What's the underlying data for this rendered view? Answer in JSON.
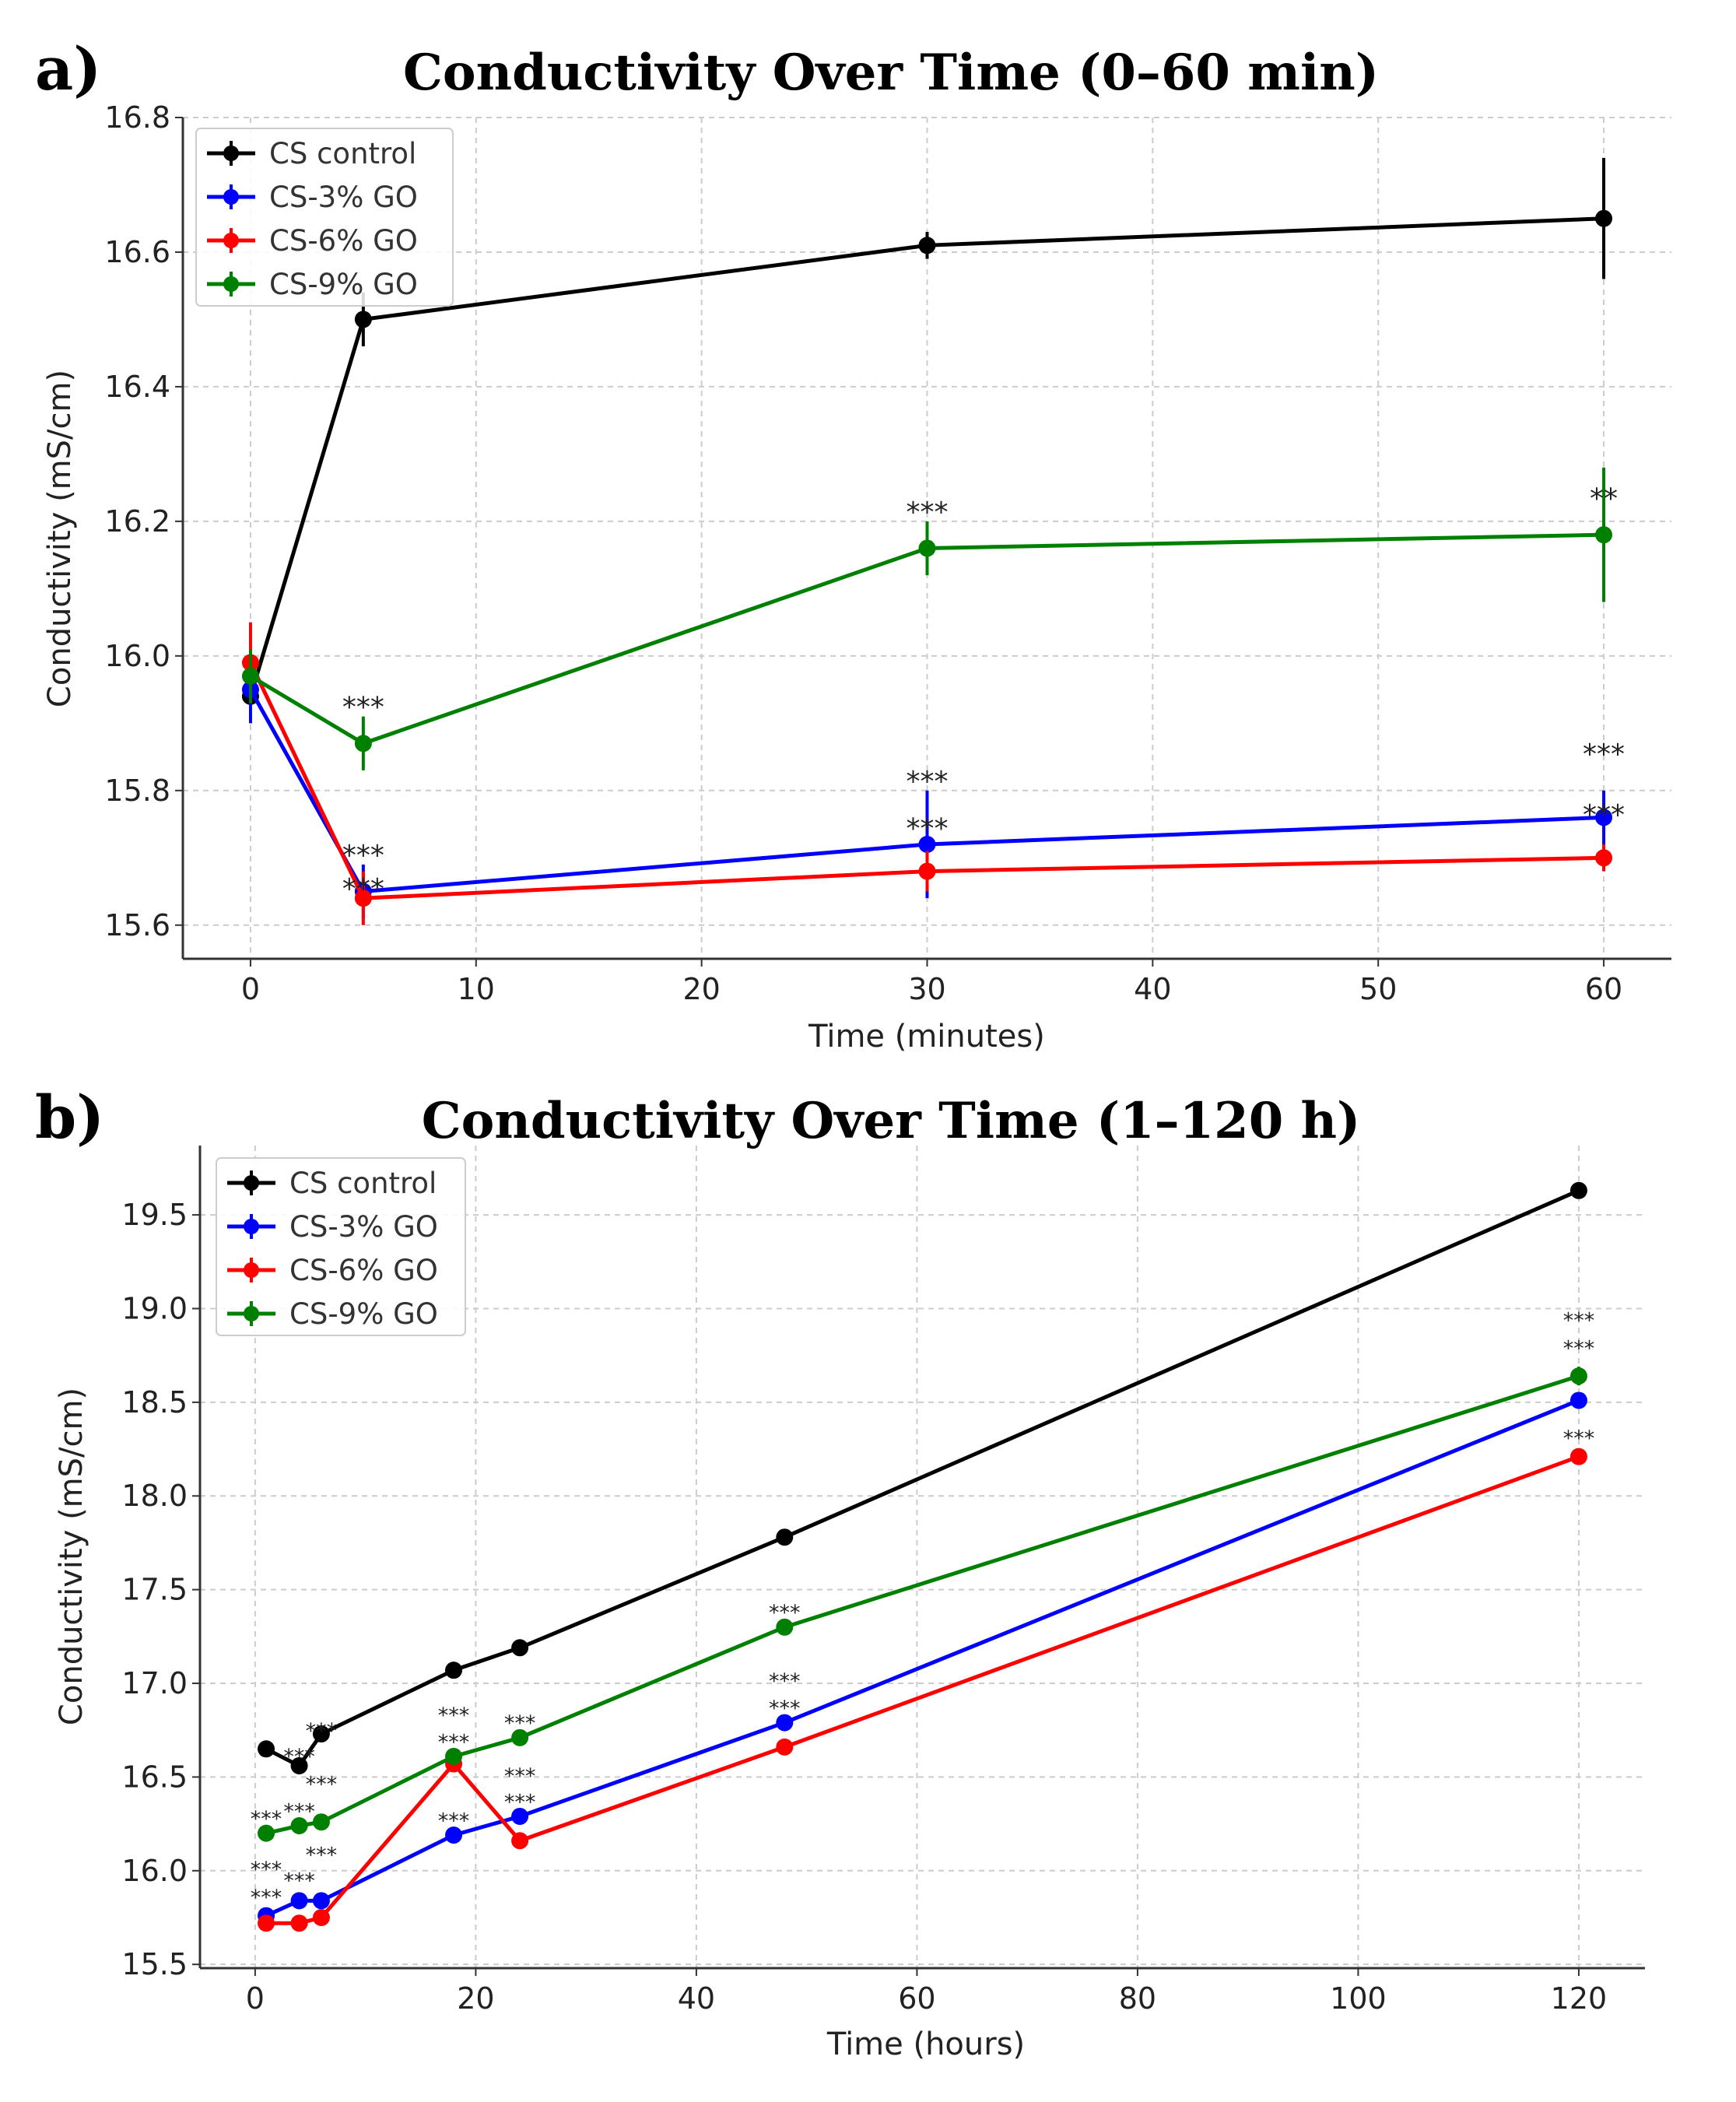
{
  "chart_data": [
    {
      "type": "line",
      "panel_label": "a)",
      "title": "Conductivity Over Time (0–60 min)",
      "xlabel": "Time (minutes)",
      "ylabel": "Conductivity (mS/cm)",
      "xlim": [
        -3,
        63
      ],
      "ylim": [
        15.55,
        16.8
      ],
      "xticks": [
        0,
        10,
        20,
        30,
        40,
        50,
        60
      ],
      "xtick_labels": [
        "0",
        "10",
        "20",
        "30",
        "40",
        "50",
        "60"
      ],
      "yticks": [
        15.6,
        15.8,
        16.0,
        16.2,
        16.4,
        16.6,
        16.8
      ],
      "ytick_labels": [
        "15.6",
        "15.8",
        "16.0",
        "16.2",
        "16.4",
        "16.6",
        "16.8"
      ],
      "grid": true,
      "legend_position": "top-left",
      "x": [
        0,
        5,
        30,
        60
      ],
      "series": [
        {
          "name": "CS control",
          "color": "#000000",
          "values": [
            15.94,
            16.5,
            16.61,
            16.65
          ],
          "errors": [
            0.01,
            0.04,
            0.02,
            0.09
          ]
        },
        {
          "name": "CS-3% GO",
          "color": "#0000ff",
          "values": [
            15.95,
            15.65,
            15.72,
            15.76
          ],
          "errors": [
            0.05,
            0.04,
            0.08,
            0.04
          ]
        },
        {
          "name": "CS-6% GO",
          "color": "#ff0000",
          "values": [
            15.99,
            15.64,
            15.68,
            15.7
          ],
          "errors": [
            0.06,
            0.04,
            0.03,
            0.02
          ]
        },
        {
          "name": "CS-9% GO",
          "color": "#008000",
          "values": [
            15.97,
            15.87,
            16.16,
            16.18
          ],
          "errors": [
            0.04,
            0.04,
            0.04,
            0.1
          ]
        }
      ],
      "annotations": [
        {
          "x": 5,
          "y": 15.91,
          "text": "***"
        },
        {
          "x": 30,
          "y": 16.2,
          "text": "***"
        },
        {
          "x": 60,
          "y": 16.22,
          "text": "**"
        },
        {
          "x": 5,
          "y": 15.69,
          "text": "***"
        },
        {
          "x": 5,
          "y": 15.64,
          "text": "***"
        },
        {
          "x": 30,
          "y": 15.8,
          "text": "***"
        },
        {
          "x": 30,
          "y": 15.73,
          "text": "***"
        },
        {
          "x": 60,
          "y": 15.84,
          "text": "***"
        },
        {
          "x": 60,
          "y": 15.75,
          "text": "***"
        }
      ]
    },
    {
      "type": "line",
      "panel_label": "b)",
      "title": "Conductivity Over Time (1–120 h)",
      "xlabel": "Time (hours)",
      "ylabel": "Conductivity (mS/cm)",
      "xlim": [
        -5,
        126
      ],
      "ylim": [
        15.48,
        19.87
      ],
      "xticks": [
        0,
        20,
        40,
        60,
        80,
        100,
        120
      ],
      "xtick_labels": [
        "0",
        "20",
        "40",
        "60",
        "80",
        "100",
        "120"
      ],
      "yticks": [
        15.5,
        16.0,
        16.5,
        17.0,
        17.5,
        18.0,
        18.5,
        19.0,
        19.5
      ],
      "ytick_labels": [
        "15.5",
        "16.0",
        "16.5",
        "17.0",
        "17.5",
        "18.0",
        "18.5",
        "19.0",
        "19.5"
      ],
      "grid": true,
      "legend_position": "top-left",
      "x": [
        1,
        4,
        6,
        18,
        24,
        48,
        120
      ],
      "series": [
        {
          "name": "CS control",
          "color": "#000000",
          "values": [
            16.65,
            16.56,
            16.73,
            17.07,
            17.19,
            17.78,
            19.63
          ],
          "errors": [
            0.02,
            0.02,
            0.02,
            0.02,
            0.02,
            0.04,
            0.02
          ]
        },
        {
          "name": "CS-3% GO",
          "color": "#0000ff",
          "values": [
            15.76,
            15.84,
            15.84,
            16.19,
            16.29,
            16.79,
            18.51
          ],
          "errors": [
            0.02,
            0.02,
            0.02,
            0.04,
            0.02,
            0.03,
            0.02
          ]
        },
        {
          "name": "CS-6% GO",
          "color": "#ff0000",
          "values": [
            15.72,
            15.72,
            15.75,
            16.57,
            16.16,
            16.66,
            18.21
          ],
          "errors": [
            0.02,
            0.02,
            0.02,
            0.02,
            0.02,
            0.02,
            0.02
          ]
        },
        {
          "name": "CS-9% GO",
          "color": "#008000",
          "values": [
            16.2,
            16.24,
            16.26,
            16.61,
            16.71,
            17.3,
            18.64
          ],
          "errors": [
            0.02,
            0.02,
            0.02,
            0.02,
            0.02,
            0.02,
            0.05
          ]
        }
      ],
      "annotations": [
        {
          "x": 1,
          "y": 16.24,
          "text": "***"
        },
        {
          "x": 4,
          "y": 16.28,
          "text": "***"
        },
        {
          "x": 6,
          "y": 16.3,
          "text": "***"
        },
        {
          "x": 18,
          "y": 16.65,
          "text": "***"
        },
        {
          "x": 24,
          "y": 16.75,
          "text": "***"
        },
        {
          "x": 48,
          "y": 17.34,
          "text": "***"
        },
        {
          "x": 120,
          "y": 18.75,
          "text": "***"
        },
        {
          "x": 1,
          "y": 15.82,
          "text": "***"
        },
        {
          "x": 1,
          "y": 15.77,
          "text": "***"
        },
        {
          "x": 4,
          "y": 15.91,
          "text": "***"
        },
        {
          "x": 6,
          "y": 15.91,
          "text": "***"
        },
        {
          "x": 4,
          "y": 15.85,
          "text": "***"
        },
        {
          "x": 6,
          "y": 15.85,
          "text": "***"
        },
        {
          "x": 18,
          "y": 16.23,
          "text": "***"
        },
        {
          "x": 18,
          "y": 16.63,
          "text": "***"
        },
        {
          "x": 24,
          "y": 16.33,
          "text": "***"
        },
        {
          "x": 24,
          "y": 16.27,
          "text": "***"
        },
        {
          "x": 48,
          "y": 16.83,
          "text": "***"
        },
        {
          "x": 48,
          "y": 16.75,
          "text": "***"
        },
        {
          "x": 120,
          "y": 18.65,
          "text": "***"
        },
        {
          "x": 120,
          "y": 18.27,
          "text": "***"
        }
      ]
    }
  ]
}
